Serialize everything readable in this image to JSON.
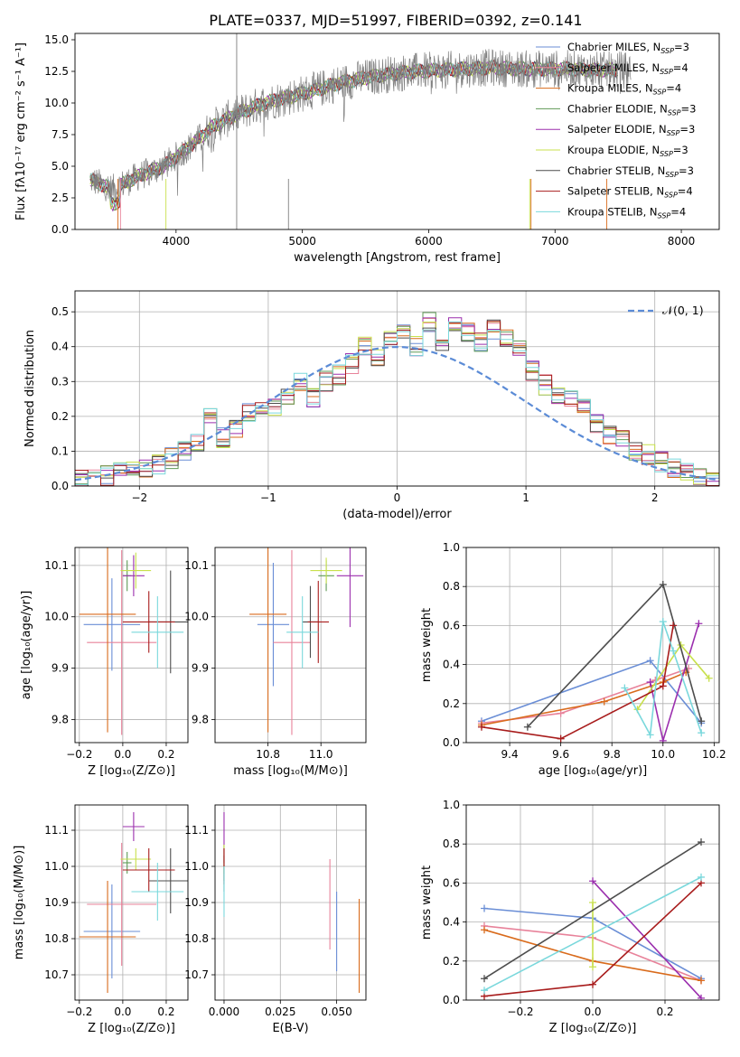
{
  "figure": {
    "title": "PLATE=0337, MJD=51997, FIBERID=0392, z=0.141"
  },
  "colors": {
    "Chabrier MILES": "#6a8ed6",
    "Salpeter MILES": "#e8829a",
    "Kroupa MILES": "#d96b1c",
    "Chabrier ELODIE": "#5f9a56",
    "Salpeter ELODIE": "#9b2fae",
    "Kroupa ELODIE": "#c8e04c",
    "Chabrier STELIB": "#4d4d4d",
    "Salpeter STELIB": "#a81c1c",
    "Kroupa STELIB": "#7ad8dc",
    "normal_curve": "#5b8bd6"
  },
  "chart_data": [
    {
      "id": "spectrum",
      "type": "line",
      "title": "PLATE=0337, MJD=51997, FIBERID=0392, z=0.141",
      "xlabel": "wavelength [Angstrom, rest frame]",
      "ylabel": "Flux [fλ10⁻¹⁷ erg cm⁻² s⁻¹ A⁻¹]",
      "xlim": [
        3200,
        8300
      ],
      "ylim": [
        0,
        15.5
      ],
      "xticks": [
        4000,
        5000,
        6000,
        7000,
        8000
      ],
      "xtick_labels": [
        "4000",
        "5000",
        "6000",
        "7000",
        "8000"
      ],
      "yticks": [
        0,
        2.5,
        5.0,
        7.5,
        10.0,
        12.5,
        15.0
      ],
      "ytick_labels": [
        "0.0",
        "2.5",
        "5.0",
        "7.5",
        "10.0",
        "12.5",
        "15.0"
      ],
      "legend_position": "upper right",
      "data_trend": {
        "x": [
          3300,
          3500,
          3700,
          3900,
          4100,
          4300,
          4500,
          4700,
          4900,
          5100,
          5300,
          5500,
          5700,
          5900,
          6100,
          6300,
          6500,
          6700,
          6900,
          7100,
          7300,
          7500
        ],
        "y": [
          4.0,
          3.2,
          4.2,
          5.0,
          6.5,
          8.2,
          9.2,
          10.0,
          10.5,
          11.0,
          11.6,
          12.0,
          12.3,
          12.5,
          12.6,
          12.7,
          12.8,
          12.7,
          12.7,
          12.7,
          12.6,
          12.6
        ]
      },
      "series": [
        {
          "name": "Chabrier MILES, N_SSP=3",
          "color": "#6a8ed6"
        },
        {
          "name": "Salpeter MILES, N_SSP=4",
          "color": "#e8829a"
        },
        {
          "name": "Kroupa MILES, N_SSP=4",
          "color": "#d96b1c"
        },
        {
          "name": "Chabrier ELODIE, N_SSP=3",
          "color": "#5f9a56"
        },
        {
          "name": "Salpeter ELODIE, N_SSP=3",
          "color": "#9b2fae"
        },
        {
          "name": "Kroupa ELODIE, N_SSP=3",
          "color": "#c8e04c"
        },
        {
          "name": "Chabrier STELIB, N_SSP=3",
          "color": "#4d4d4d"
        },
        {
          "name": "Salpeter STELIB, N_SSP=4",
          "color": "#a81c1c"
        },
        {
          "name": "Kroupa STELIB, N_SSP=4",
          "color": "#7ad8dc"
        }
      ],
      "legend_labels": [
        "Chabrier MILES, N",
        "Salpeter MILES, N",
        "Kroupa MILES, N",
        "Chabrier ELODIE, N",
        "Salpeter ELODIE, N",
        "Kroupa ELODIE, N",
        "Chabrier STELIB, N",
        "Salpeter STELIB, N",
        "Kroupa STELIB, N"
      ],
      "legend_subscript": "SSP",
      "legend_counts": [
        "=3",
        "=4",
        "=4",
        "=3",
        "=3",
        "=3",
        "=3",
        "=4",
        "=4"
      ]
    },
    {
      "id": "residuals",
      "type": "area",
      "xlabel": "(data-model)/error",
      "ylabel": "Normed distribution",
      "xlim": [
        -2.5,
        2.5
      ],
      "ylim": [
        0,
        0.56
      ],
      "xticks": [
        -2,
        -1,
        0,
        1,
        2
      ],
      "xtick_labels": [
        "−2",
        "−1",
        "0",
        "1",
        "2"
      ],
      "yticks": [
        0.0,
        0.1,
        0.2,
        0.3,
        0.4,
        0.5
      ],
      "ytick_labels": [
        "0.0",
        "0.1",
        "0.2",
        "0.3",
        "0.4",
        "0.5"
      ],
      "legend_label": "𝒩(0, 1)",
      "legend_position": "upper right",
      "bin_width": 0.1,
      "histogram_center": [
        0.02,
        0.02,
        0.03,
        0.04,
        0.04,
        0.05,
        0.06,
        0.08,
        0.1,
        0.12,
        0.2,
        0.14,
        0.16,
        0.21,
        0.23,
        0.22,
        0.26,
        0.3,
        0.25,
        0.3,
        0.32,
        0.35,
        0.4,
        0.37,
        0.43,
        0.44,
        0.4,
        0.47,
        0.4,
        0.46,
        0.44,
        0.41,
        0.45,
        0.42,
        0.39,
        0.33,
        0.29,
        0.26,
        0.25,
        0.22,
        0.18,
        0.15,
        0.13,
        0.1,
        0.09,
        0.07,
        0.05,
        0.04,
        0.03,
        0.02
      ],
      "curve": {
        "name": "N(0,1)",
        "mean": 0,
        "sigma": 1
      }
    },
    {
      "id": "age_vs_Z",
      "type": "scatter",
      "xlabel": "Z [log₁₀(Z/Z⊙)]",
      "ylabel": "age  [log₁₀(age/yr)]",
      "xlim": [
        -0.22,
        0.3
      ],
      "ylim": [
        9.755,
        10.135
      ],
      "xticks": [
        -0.2,
        0.0,
        0.2
      ],
      "xtick_labels": [
        "−0.2",
        "0.0",
        "0.2"
      ],
      "yticks": [
        9.8,
        9.9,
        10.0,
        10.1
      ],
      "ytick_labels": [
        "9.8",
        "9.9",
        "10.0",
        "10.1"
      ],
      "points": [
        {
          "x": -0.05,
          "y": 9.985,
          "xerr": 0.13,
          "yerr": 0.09,
          "model": "Chabrier MILES"
        },
        {
          "x": -0.005,
          "y": 9.95,
          "xerr": 0.16,
          "yerr": 0.18,
          "model": "Salpeter MILES"
        },
        {
          "x": -0.07,
          "y": 10.005,
          "xerr": 0.13,
          "yerr": 0.23,
          "model": "Kroupa MILES"
        },
        {
          "x": 0.02,
          "y": 10.08,
          "xerr": 0.02,
          "yerr": 0.03,
          "model": "Chabrier ELODIE"
        },
        {
          "x": 0.05,
          "y": 10.08,
          "xerr": 0.05,
          "yerr": 0.04,
          "model": "Salpeter ELODIE"
        },
        {
          "x": 0.06,
          "y": 10.09,
          "xerr": 0.07,
          "yerr": 0.035,
          "model": "Kroupa ELODIE"
        },
        {
          "x": 0.22,
          "y": 9.99,
          "xerr": 0.1,
          "yerr": 0.1,
          "model": "Chabrier STELIB"
        },
        {
          "x": 0.12,
          "y": 9.99,
          "xerr": 0.12,
          "yerr": 0.06,
          "model": "Salpeter STELIB"
        },
        {
          "x": 0.16,
          "y": 9.97,
          "xerr": 0.12,
          "yerr": 0.07,
          "model": "Kroupa STELIB"
        }
      ]
    },
    {
      "id": "age_vs_mass",
      "type": "scatter",
      "xlabel": "mass [log₁₀(M/M⊙)]",
      "ylabel": "",
      "xlim": [
        10.6,
        11.17
      ],
      "ylim": [
        9.755,
        10.135
      ],
      "xticks": [
        10.8,
        11.0
      ],
      "xtick_labels": [
        "10.8",
        "11.0"
      ],
      "yticks": [
        9.8,
        9.9,
        10.0,
        10.1
      ],
      "ytick_labels": [
        "9.8",
        "9.9",
        "10.0",
        "10.1"
      ],
      "points": [
        {
          "x": 10.82,
          "y": 9.985,
          "xerr": 0.06,
          "yerr": 0.12,
          "model": "Chabrier MILES"
        },
        {
          "x": 10.89,
          "y": 9.95,
          "xerr": 0.07,
          "yerr": 0.18,
          "model": "Salpeter MILES"
        },
        {
          "x": 10.8,
          "y": 10.005,
          "xerr": 0.07,
          "yerr": 0.23,
          "model": "Kroupa MILES"
        },
        {
          "x": 11.02,
          "y": 10.08,
          "xerr": 0.03,
          "yerr": 0.03,
          "model": "Chabrier ELODIE"
        },
        {
          "x": 11.11,
          "y": 10.08,
          "xerr": 0.05,
          "yerr": 0.1,
          "model": "Salpeter ELODIE"
        },
        {
          "x": 11.02,
          "y": 10.09,
          "xerr": 0.06,
          "yerr": 0.025,
          "model": "Kroupa ELODIE"
        },
        {
          "x": 10.96,
          "y": 9.99,
          "xerr": 0.03,
          "yerr": 0.07,
          "model": "Chabrier STELIB"
        },
        {
          "x": 10.99,
          "y": 9.99,
          "xerr": 0.04,
          "yerr": 0.08,
          "model": "Salpeter STELIB"
        },
        {
          "x": 10.93,
          "y": 9.97,
          "xerr": 0.06,
          "yerr": 0.07,
          "model": "Kroupa STELIB"
        }
      ]
    },
    {
      "id": "weight_vs_age",
      "type": "line",
      "xlabel": "age  [log₁₀(age/yr)]",
      "ylabel": "mass weight",
      "xlim": [
        9.23,
        10.22
      ],
      "ylim": [
        0,
        1.0
      ],
      "xticks": [
        9.4,
        9.6,
        9.8,
        10.0,
        10.2
      ],
      "xtick_labels": [
        "9.4",
        "9.6",
        "9.8",
        "10.0",
        "10.2"
      ],
      "yticks": [
        0.0,
        0.2,
        0.4,
        0.6,
        0.8,
        1.0
      ],
      "ytick_labels": [
        "0.0",
        "0.2",
        "0.4",
        "0.6",
        "0.8",
        "1.0"
      ],
      "series": [
        {
          "name": "Chabrier MILES",
          "x": [
            9.29,
            9.95,
            10.15
          ],
          "y": [
            0.11,
            0.42,
            0.1
          ]
        },
        {
          "name": "Salpeter MILES",
          "x": [
            9.29,
            9.6,
            9.97,
            10.1
          ],
          "y": [
            0.1,
            0.15,
            0.32,
            0.38
          ]
        },
        {
          "name": "Kroupa MILES",
          "x": [
            9.29,
            9.77,
            10.0,
            10.09
          ],
          "y": [
            0.09,
            0.21,
            0.31,
            0.36
          ]
        },
        {
          "name": "Salpeter ELODIE",
          "x": [
            9.95,
            10.0,
            10.14
          ],
          "y": [
            0.31,
            0.01,
            0.61
          ]
        },
        {
          "name": "Kroupa ELODIE",
          "x": [
            9.9,
            10.07,
            10.18
          ],
          "y": [
            0.17,
            0.5,
            0.33
          ]
        },
        {
          "name": "Chabrier STELIB",
          "x": [
            9.47,
            10.0,
            10.15
          ],
          "y": [
            0.08,
            0.81,
            0.11
          ]
        },
        {
          "name": "Salpeter STELIB",
          "x": [
            9.29,
            9.6,
            10.0,
            10.04
          ],
          "y": [
            0.08,
            0.02,
            0.29,
            0.6
          ]
        },
        {
          "name": "Kroupa STELIB",
          "x": [
            9.85,
            9.95,
            10.0,
            10.04,
            10.15
          ],
          "y": [
            0.28,
            0.04,
            0.62,
            0.47,
            0.05
          ]
        }
      ]
    },
    {
      "id": "mass_vs_Z",
      "type": "scatter",
      "xlabel": "Z [log₁₀(Z/Z⊙)]",
      "ylabel": "mass [log₁₀(M/M⊙)]",
      "xlim": [
        -0.22,
        0.3
      ],
      "ylim": [
        10.63,
        11.17
      ],
      "xticks": [
        -0.2,
        0.0,
        0.2
      ],
      "xtick_labels": [
        "−0.2",
        "0.0",
        "0.2"
      ],
      "yticks": [
        10.7,
        10.8,
        10.9,
        11.0,
        11.1
      ],
      "ytick_labels": [
        "10.7",
        "10.8",
        "10.9",
        "11.0",
        "11.1"
      ],
      "points": [
        {
          "x": -0.05,
          "y": 10.82,
          "xerr": 0.13,
          "yerr": 0.13,
          "model": "Chabrier MILES"
        },
        {
          "x": -0.005,
          "y": 10.895,
          "xerr": 0.16,
          "yerr": 0.17,
          "model": "Salpeter MILES"
        },
        {
          "x": -0.07,
          "y": 10.805,
          "xerr": 0.13,
          "yerr": 0.155,
          "model": "Kroupa MILES"
        },
        {
          "x": 0.02,
          "y": 11.01,
          "xerr": 0.02,
          "yerr": 0.03,
          "model": "Chabrier ELODIE"
        },
        {
          "x": 0.05,
          "y": 11.11,
          "xerr": 0.05,
          "yerr": 0.04,
          "model": "Salpeter ELODIE"
        },
        {
          "x": 0.06,
          "y": 11.02,
          "xerr": 0.07,
          "yerr": 0.03,
          "model": "Kroupa ELODIE"
        },
        {
          "x": 0.22,
          "y": 10.96,
          "xerr": 0.1,
          "yerr": 0.09,
          "model": "Chabrier STELIB"
        },
        {
          "x": 0.12,
          "y": 10.99,
          "xerr": 0.12,
          "yerr": 0.06,
          "model": "Salpeter STELIB"
        },
        {
          "x": 0.16,
          "y": 10.93,
          "xerr": 0.12,
          "yerr": 0.08,
          "model": "Kroupa STELIB"
        }
      ]
    },
    {
      "id": "mass_vs_ebv",
      "type": "scatter",
      "xlabel": "E(B-V)",
      "ylabel": "",
      "xlim": [
        -0.004,
        0.063
      ],
      "ylim": [
        10.63,
        11.17
      ],
      "xticks": [
        0.0,
        0.025,
        0.05
      ],
      "xtick_labels": [
        "0.000",
        "0.025",
        "0.050"
      ],
      "yticks": [
        10.7,
        10.8,
        10.9,
        11.0,
        11.1
      ],
      "ytick_labels": [
        "10.7",
        "10.8",
        "10.9",
        "11.0",
        "11.1"
      ],
      "points": [
        {
          "x": 0.05,
          "y": 10.82,
          "yerr": 0.11,
          "model": "Chabrier MILES"
        },
        {
          "x": 0.047,
          "y": 10.895,
          "yerr": 0.125,
          "model": "Salpeter MILES"
        },
        {
          "x": 0.06,
          "y": 10.78,
          "yerr": 0.13,
          "model": "Kroupa MILES"
        },
        {
          "x": 0.0,
          "y": 11.01,
          "yerr": 0.05,
          "model": "Chabrier ELODIE"
        },
        {
          "x": 0.0,
          "y": 11.08,
          "yerr": 0.07,
          "model": "Salpeter ELODIE"
        },
        {
          "x": 0.0,
          "y": 11.02,
          "yerr": 0.04,
          "model": "Kroupa ELODIE"
        },
        {
          "x": 0.0,
          "y": 10.98,
          "yerr": 0.05,
          "model": "Chabrier STELIB"
        },
        {
          "x": 0.0,
          "y": 11.0,
          "yerr": 0.05,
          "model": "Salpeter STELIB"
        },
        {
          "x": 0.0,
          "y": 10.93,
          "yerr": 0.07,
          "model": "Kroupa STELIB"
        }
      ]
    },
    {
      "id": "weight_vs_Z",
      "type": "line",
      "xlabel": "Z [log₁₀(Z/Z⊙)]",
      "ylabel": "mass weight",
      "xlim": [
        -0.35,
        0.35
      ],
      "ylim": [
        0,
        1.0
      ],
      "xticks": [
        -0.2,
        0.0,
        0.2
      ],
      "xtick_labels": [
        "−0.2",
        "0.0",
        "0.2"
      ],
      "yticks": [
        0.0,
        0.2,
        0.4,
        0.6,
        0.8,
        1.0
      ],
      "ytick_labels": [
        "0.0",
        "0.2",
        "0.4",
        "0.6",
        "0.8",
        "1.0"
      ],
      "series": [
        {
          "name": "Chabrier MILES",
          "x": [
            -0.3,
            0.0,
            0.3
          ],
          "y": [
            0.47,
            0.42,
            0.11
          ]
        },
        {
          "name": "Salpeter MILES",
          "x": [
            -0.3,
            0.0,
            0.3
          ],
          "y": [
            0.38,
            0.32,
            0.1
          ]
        },
        {
          "name": "Kroupa MILES",
          "x": [
            -0.3,
            0.0,
            0.3
          ],
          "y": [
            0.36,
            0.2,
            0.1
          ]
        },
        {
          "name": "Salpeter ELODIE",
          "x": [
            0.0,
            0.3
          ],
          "y": [
            0.61,
            0.01
          ]
        },
        {
          "name": "Kroupa ELODIE",
          "x": [
            0.0,
            0.0
          ],
          "y": [
            0.5,
            0.17
          ]
        },
        {
          "name": "Chabrier STELIB",
          "x": [
            -0.3,
            0.3
          ],
          "y": [
            0.11,
            0.81
          ]
        },
        {
          "name": "Salpeter STELIB",
          "x": [
            -0.3,
            0.0,
            0.3
          ],
          "y": [
            0.02,
            0.08,
            0.6
          ]
        },
        {
          "name": "Kroupa STELIB",
          "x": [
            -0.3,
            0.3
          ],
          "y": [
            0.05,
            0.63
          ]
        }
      ]
    }
  ]
}
